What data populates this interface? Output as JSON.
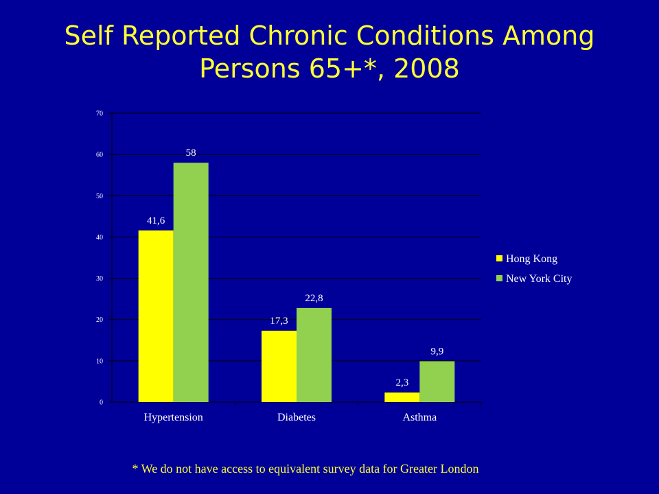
{
  "slide": {
    "title_line1": "Self Reported Chronic Conditions Among",
    "title_line2": "Persons 65+*, 2008",
    "footnote": "* We do not have access to equivalent survey data for Greater London"
  },
  "colors": {
    "background": "#000099",
    "title": "#ffff33",
    "hong_kong": "#ffff00",
    "new_york": "#92d050",
    "axis_text": "#ffffff",
    "label_text": "#ffffff"
  },
  "chart_data": {
    "type": "bar",
    "title": "",
    "xlabel": "",
    "ylabel": "",
    "categories": [
      "Hypertension",
      "Diabetes",
      "Asthma"
    ],
    "series": [
      {
        "name": "Hong Kong",
        "values": [
          41.6,
          17.3,
          2.3
        ],
        "labels": [
          "41,6",
          "17,3",
          "2,3"
        ],
        "color": "#ffff00"
      },
      {
        "name": "New York City",
        "values": [
          58,
          22.8,
          9.9
        ],
        "labels": [
          "58",
          "22,8",
          "9,9"
        ],
        "color": "#92d050"
      }
    ],
    "ylim": [
      0,
      70
    ],
    "yticks": [
      0,
      10,
      20,
      30,
      40,
      50,
      60,
      70
    ],
    "grid": true,
    "legend_position": "right"
  }
}
